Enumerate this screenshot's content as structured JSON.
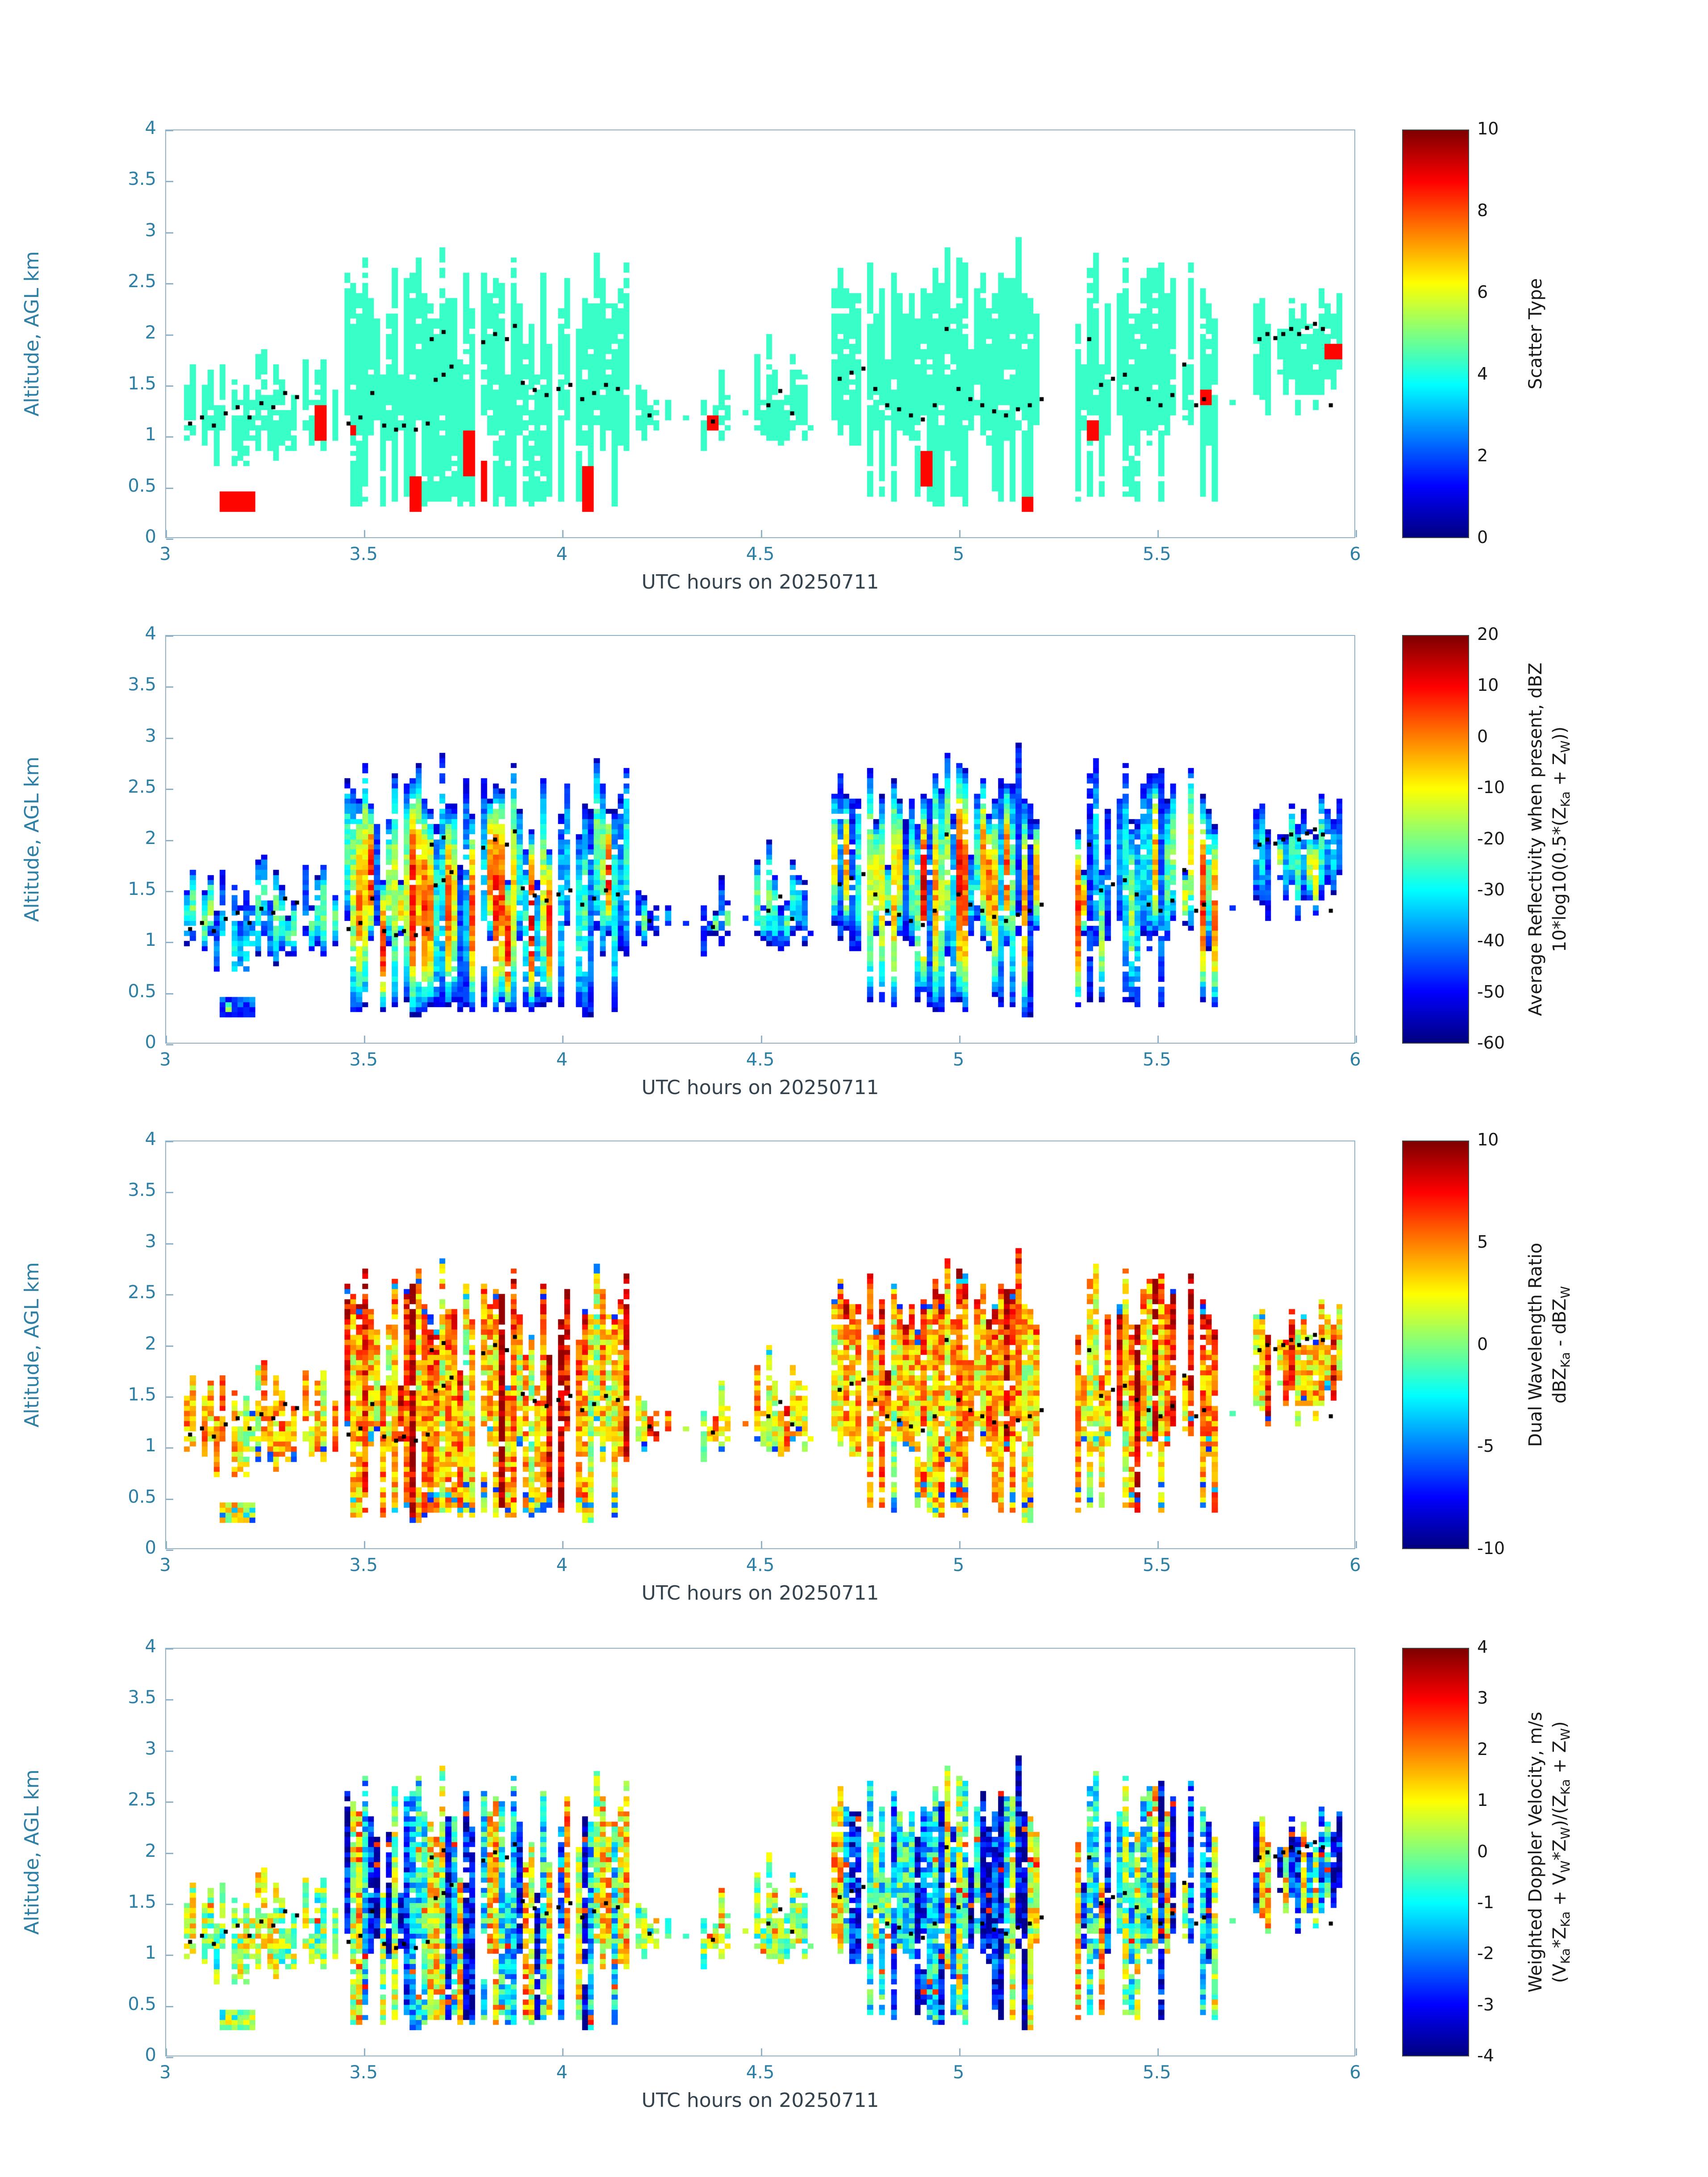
{
  "figure": {
    "background": "#ffffff",
    "axis_box_color": "#8fb2c9",
    "tick_label_color": "#2e7fa6",
    "xlabel_color": "#33424d",
    "colorbar_text_color": "#1a1a1a",
    "dot_color": "#000000",
    "colormap": "jet"
  },
  "chart_data": [
    {
      "type": "heatmap",
      "panel": "scatter_type",
      "xlabel": "UTC hours on 20250711",
      "ylabel": "Altitude, AGL km",
      "xlim": [
        3,
        6
      ],
      "ylim": [
        0,
        4
      ],
      "xticks": [
        3,
        3.5,
        4,
        4.5,
        5,
        5.5,
        6
      ],
      "yticks": [
        0,
        0.5,
        1,
        1.5,
        2,
        2.5,
        3,
        3.5,
        4
      ],
      "colorbar": {
        "range": [
          0,
          10
        ],
        "ticks": [
          0,
          2,
          4,
          6,
          8,
          10
        ],
        "label_lines": [
          [
            [
              "t",
              "Scatter Type"
            ]
          ]
        ]
      },
      "value_model": {
        "kind": "uniform",
        "fill": 4.3,
        "anomaly_value": 8.7,
        "clamp": [
          0,
          10
        ]
      }
    },
    {
      "type": "heatmap",
      "panel": "average_reflectivity",
      "xlabel": "UTC hours on 20250711",
      "ylabel": "Altitude, AGL km",
      "xlim": [
        3,
        6
      ],
      "ylim": [
        0,
        4
      ],
      "xticks": [
        3,
        3.5,
        4,
        4.5,
        5,
        5.5,
        6
      ],
      "yticks": [
        0,
        0.5,
        1,
        1.5,
        2,
        2.5,
        3,
        3.5,
        4
      ],
      "colorbar": {
        "range": [
          -60,
          20
        ],
        "ticks": [
          -60,
          -50,
          -40,
          -30,
          -20,
          -10,
          0,
          10,
          20
        ],
        "label_lines": [
          [
            [
              "t",
              "Average Reflectivity when present, dBZ"
            ]
          ],
          [
            [
              "t",
              "10*log10(0.5*(Z"
            ],
            [
              "s",
              "Ka"
            ],
            [
              "t",
              " + Z"
            ],
            [
              "s",
              "W"
            ],
            [
              "t",
              "))"
            ]
          ]
        ]
      },
      "value_model": {
        "kind": "reflectivity",
        "edge_floor": -52,
        "core_min": -46,
        "core_base": 18,
        "core_intensity_span": 38,
        "noise": 6,
        "clamp": [
          -58,
          18
        ]
      }
    },
    {
      "type": "heatmap",
      "panel": "dual_wavelength_ratio",
      "xlabel": "UTC hours on 20250711",
      "ylabel": "Altitude, AGL km",
      "xlim": [
        3,
        6
      ],
      "ylim": [
        0,
        4
      ],
      "xticks": [
        3,
        3.5,
        4,
        4.5,
        5,
        5.5,
        6
      ],
      "yticks": [
        0,
        0.5,
        1,
        1.5,
        2,
        2.5,
        3,
        3.5,
        4
      ],
      "colorbar": {
        "range": [
          -10,
          10
        ],
        "ticks": [
          -10,
          -5,
          0,
          5,
          10
        ],
        "label_lines": [
          [
            [
              "t",
              "Dual Wavelength Ratio"
            ]
          ],
          [
            [
              "t",
              "dBZ"
            ],
            [
              "s",
              "Ka"
            ],
            [
              "t",
              " - dBZ"
            ],
            [
              "s",
              "W"
            ]
          ]
        ]
      },
      "value_model": {
        "kind": "dwr",
        "base": 1.0,
        "span": 4.2,
        "noise": 2.6,
        "streak_prob": 0.86,
        "streak_add": 4.5,
        "top_add": 2.8,
        "blue_prob": 0.18,
        "clamp": [
          -9,
          9.6
        ]
      }
    },
    {
      "type": "heatmap",
      "panel": "weighted_doppler_velocity",
      "xlabel": "UTC hours on 20250711",
      "ylabel": "Altitude, AGL km",
      "xlim": [
        3,
        6
      ],
      "ylim": [
        0,
        4
      ],
      "xticks": [
        3,
        3.5,
        4,
        4.5,
        5,
        5.5,
        6
      ],
      "yticks": [
        0,
        0.5,
        1,
        1.5,
        2,
        2.5,
        3,
        3.5,
        4
      ],
      "colorbar": {
        "range": [
          -4,
          4
        ],
        "ticks": [
          -4,
          -3,
          -2,
          -1,
          0,
          1,
          2,
          3,
          4
        ],
        "label_lines": [
          [
            [
              "t",
              "Weighted Doppler Velocity, m/s"
            ]
          ],
          [
            [
              "t",
              "(V"
            ],
            [
              "s",
              "Ka"
            ],
            [
              "t",
              "*Z"
            ],
            [
              "s",
              "Ka"
            ],
            [
              "t",
              " + V"
            ],
            [
              "s",
              "W"
            ],
            [
              "t",
              "*Z"
            ],
            [
              "s",
              "W"
            ],
            [
              "t",
              ")/(Z"
            ],
            [
              "s",
              "Ka"
            ],
            [
              "t",
              " + Z"
            ],
            [
              "s",
              "W"
            ],
            [
              "t",
              ")"
            ]
          ]
        ]
      },
      "value_model": {
        "kind": "velocity",
        "neg_prob": 0.38,
        "mid_prob": 0.58,
        "neg_base": -2.2,
        "neg_var": 1.4,
        "mid_base": -1.0,
        "pos_base": 0.2,
        "pos_var": 1.4,
        "noise": 1.3,
        "clamp": [
          -3.9,
          3.9
        ]
      }
    }
  ],
  "cloud_field": {
    "grid": {
      "dt_hours": 0.015,
      "dz_km": 0.05,
      "t_range": [
        3,
        6
      ],
      "z_range": [
        0,
        4
      ]
    },
    "regions": [
      {
        "id": "A",
        "t0": 3.04,
        "t1": 3.33,
        "zbase": 0.88,
        "ztop": 1.48,
        "topvar": 0.28,
        "botvar": 0.22,
        "frag": 0.1,
        "hole": 0.14,
        "kind": "small",
        "intensity": 0.3
      },
      {
        "id": "A2",
        "t0": 3.34,
        "t1": 3.43,
        "zbase": 0.98,
        "ztop": 1.55,
        "topvar": 0.22,
        "botvar": 0.18,
        "frag": 0.15,
        "hole": 0.15,
        "kind": "small",
        "intensity": 0.3
      },
      {
        "id": "B",
        "t0": 3.45,
        "t1": 3.785,
        "zbase": 0.28,
        "ztop": 2.35,
        "topvar": 0.32,
        "botvar": 0.2,
        "frag": 0.04,
        "hole": 0.06,
        "kind": "tall",
        "intensity": 1.0
      },
      {
        "id": "C",
        "t0": 3.79,
        "t1": 4.17,
        "zbase": 0.28,
        "ztop": 2.3,
        "topvar": 0.33,
        "botvar": 0.2,
        "frag": 0.07,
        "hole": 0.07,
        "kind": "tall",
        "intensity": 1.0
      },
      {
        "id": "c2",
        "t0": 4.19,
        "t1": 4.27,
        "zbase": 1.05,
        "ztop": 1.42,
        "topvar": 0.12,
        "botvar": 0.12,
        "frag": 0.25,
        "hole": 0.15,
        "kind": "small",
        "intensity": 0.2
      },
      {
        "id": "d1",
        "t0": 4.345,
        "t1": 4.43,
        "zbase": 0.96,
        "ztop": 1.32,
        "topvar": 0.12,
        "botvar": 0.12,
        "frag": 0.2,
        "hole": 0.15,
        "kind": "small",
        "intensity": 0.22
      },
      {
        "id": "d2",
        "t0": 4.49,
        "t1": 4.625,
        "zbase": 1.0,
        "ztop": 1.62,
        "topvar": 0.28,
        "botvar": 0.15,
        "frag": 0.12,
        "hole": 0.12,
        "kind": "small",
        "intensity": 0.35
      },
      {
        "id": "D",
        "t0": 4.68,
        "t1": 4.955,
        "zbase": 0.3,
        "ztop": 2.42,
        "topvar": 0.26,
        "botvar": 0.2,
        "frag": 0.05,
        "hole": 0.06,
        "kind": "tall",
        "intensity": 0.9
      },
      {
        "id": "E",
        "t0": 4.955,
        "t1": 5.225,
        "zbase": 0.3,
        "ztop": 2.48,
        "topvar": 0.28,
        "botvar": 0.2,
        "frag": 0.05,
        "hole": 0.06,
        "kind": "tall",
        "intensity": 1.0
      },
      {
        "id": "F",
        "t0": 5.3,
        "t1": 5.66,
        "zbase": 0.3,
        "ztop": 2.4,
        "topvar": 0.3,
        "botvar": 0.2,
        "frag": 0.07,
        "hole": 0.07,
        "kind": "tall",
        "intensity": 0.9
      },
      {
        "id": "G",
        "t0": 5.74,
        "t1": 5.975,
        "zbase": 1.18,
        "ztop": 2.2,
        "topvar": 0.16,
        "botvar": 0.2,
        "frag": 0.05,
        "hole": 0.08,
        "kind": "anvil",
        "intensity": 0.6
      }
    ],
    "anomalies": [
      [
        3.13,
        3.22,
        0.25,
        0.45
      ],
      [
        3.37,
        3.4,
        0.95,
        1.3
      ],
      [
        3.46,
        3.475,
        1.0,
        1.1
      ],
      [
        3.62,
        3.645,
        0.25,
        0.6
      ],
      [
        3.755,
        3.775,
        0.6,
        1.05
      ],
      [
        3.79,
        3.81,
        0.35,
        0.75
      ],
      [
        4.05,
        4.085,
        0.25,
        0.7
      ],
      [
        4.37,
        4.4,
        1.05,
        1.2
      ],
      [
        4.9,
        4.935,
        0.5,
        0.85
      ],
      [
        5.16,
        5.19,
        0.25,
        0.4
      ],
      [
        5.33,
        5.35,
        0.95,
        1.15
      ],
      [
        5.61,
        5.635,
        1.3,
        1.45
      ],
      [
        5.93,
        5.965,
        1.75,
        1.92
      ]
    ],
    "extra_cells": [
      [
        4.31,
        1.18
      ],
      [
        4.455,
        1.22
      ],
      [
        5.695,
        1.32
      ],
      [
        4.63,
        1.05
      ]
    ],
    "track_dots": [
      [
        3.06,
        1.12
      ],
      [
        3.09,
        1.18
      ],
      [
        3.12,
        1.1
      ],
      [
        3.15,
        1.22
      ],
      [
        3.18,
        1.28
      ],
      [
        3.21,
        1.18
      ],
      [
        3.24,
        1.32
      ],
      [
        3.27,
        1.28
      ],
      [
        3.3,
        1.42
      ],
      [
        3.33,
        1.38
      ],
      [
        3.46,
        1.12
      ],
      [
        3.49,
        1.18
      ],
      [
        3.52,
        1.42
      ],
      [
        3.55,
        1.1
      ],
      [
        3.58,
        1.06
      ],
      [
        3.6,
        1.1
      ],
      [
        3.63,
        1.06
      ],
      [
        3.66,
        1.12
      ],
      [
        3.68,
        1.55
      ],
      [
        3.7,
        1.6
      ],
      [
        3.72,
        1.68
      ],
      [
        3.67,
        1.95
      ],
      [
        3.7,
        2.02
      ],
      [
        3.8,
        1.92
      ],
      [
        3.83,
        2.0
      ],
      [
        3.86,
        1.95
      ],
      [
        3.88,
        2.08
      ],
      [
        3.9,
        1.52
      ],
      [
        3.93,
        1.45
      ],
      [
        3.96,
        1.4
      ],
      [
        3.99,
        1.46
      ],
      [
        4.02,
        1.5
      ],
      [
        4.05,
        1.36
      ],
      [
        4.08,
        1.42
      ],
      [
        4.11,
        1.5
      ],
      [
        4.14,
        1.46
      ],
      [
        4.22,
        1.2
      ],
      [
        4.38,
        1.14
      ],
      [
        4.52,
        1.3
      ],
      [
        4.55,
        1.44
      ],
      [
        4.58,
        1.22
      ],
      [
        4.7,
        1.56
      ],
      [
        4.73,
        1.62
      ],
      [
        4.76,
        1.66
      ],
      [
        4.79,
        1.46
      ],
      [
        4.82,
        1.3
      ],
      [
        4.85,
        1.26
      ],
      [
        4.88,
        1.2
      ],
      [
        4.91,
        1.16
      ],
      [
        4.94,
        1.3
      ],
      [
        4.97,
        2.05
      ],
      [
        5.0,
        1.46
      ],
      [
        5.03,
        1.36
      ],
      [
        5.06,
        1.3
      ],
      [
        5.09,
        1.24
      ],
      [
        5.12,
        1.2
      ],
      [
        5.15,
        1.26
      ],
      [
        5.18,
        1.3
      ],
      [
        5.21,
        1.36
      ],
      [
        5.33,
        1.95
      ],
      [
        5.36,
        1.5
      ],
      [
        5.39,
        1.56
      ],
      [
        5.42,
        1.6
      ],
      [
        5.45,
        1.46
      ],
      [
        5.48,
        1.36
      ],
      [
        5.51,
        1.3
      ],
      [
        5.54,
        1.4
      ],
      [
        5.57,
        1.7
      ],
      [
        5.6,
        1.3
      ],
      [
        5.62,
        1.36
      ],
      [
        5.76,
        1.95
      ],
      [
        5.78,
        2.0
      ],
      [
        5.8,
        1.96
      ],
      [
        5.82,
        2.0
      ],
      [
        5.84,
        2.05
      ],
      [
        5.86,
        2.0
      ],
      [
        5.88,
        2.06
      ],
      [
        5.9,
        2.1
      ],
      [
        5.92,
        2.05
      ],
      [
        5.94,
        1.3
      ]
    ]
  },
  "layout_hints": {
    "grid": "off",
    "legend": "colorbar-right",
    "panels_stacked": 4
  }
}
